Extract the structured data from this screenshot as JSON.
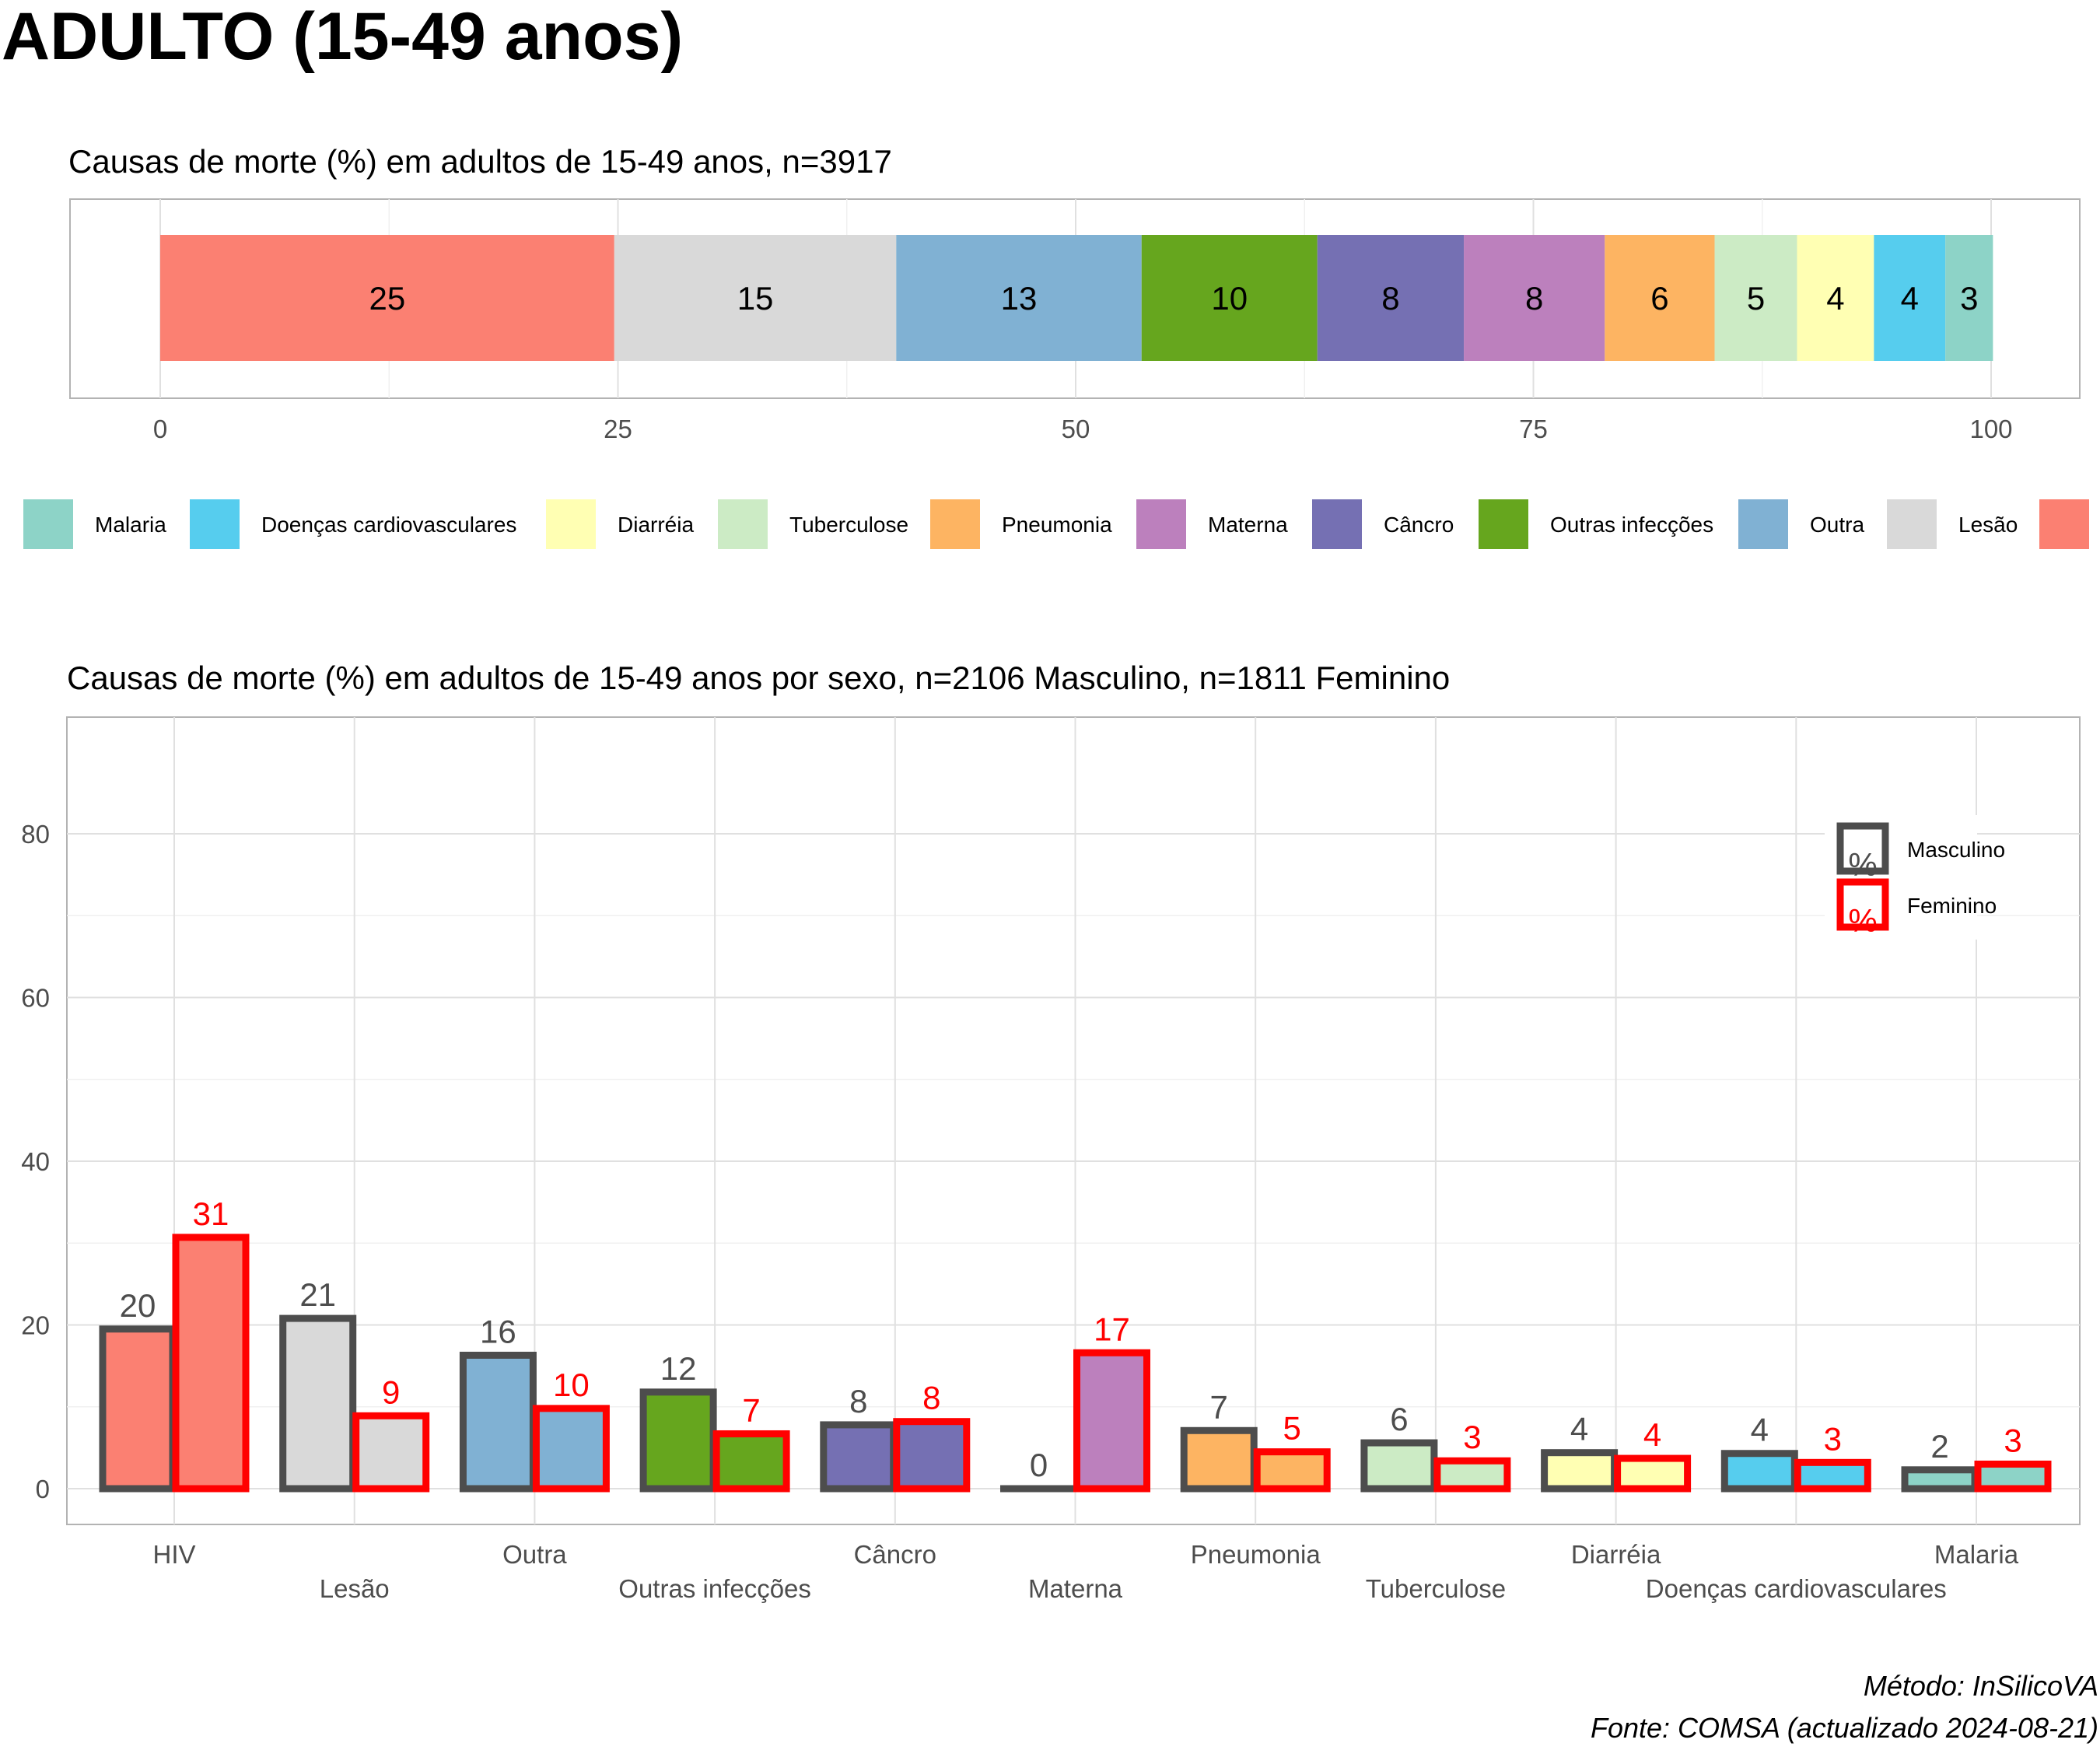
{
  "title": "ADULTO (15-49 anos)",
  "caption": {
    "method": "Método: InSilicoVA",
    "source": "Fonte: COMSA (actualizado 2024-08-21)"
  },
  "colors": {
    "HIV": "#fb8072",
    "Lesão": "#d9d9d9",
    "Outra": "#80b1d3",
    "Outras infecções": "#66a61e",
    "Câncro": "#7570b3",
    "Materna": "#bc80bd",
    "Pneumonia": "#fdb462",
    "Tuberculose": "#ccebc5",
    "Diarréia": "#ffffb3",
    "Doenças cardiovasculares": "#56cdee",
    "Malaria": "#8dd3c7",
    "male_outline": "#4d4d4d",
    "female_outline": "#ff0000"
  },
  "chart_data": [
    {
      "type": "bar",
      "orientation": "horizontal-stacked",
      "title": "Causas de morte (%) em adultos de 15-49 anos, n=3917",
      "xlim": [
        0,
        100
      ],
      "x_ticks": [
        0,
        25,
        50,
        75,
        100
      ],
      "categories": [
        "HIV",
        "Lesão",
        "Outra",
        "Outras infecções",
        "Câncro",
        "Materna",
        "Pneumonia",
        "Tuberculose",
        "Diarréia",
        "Doenças cardiovasculares",
        "Malaria"
      ],
      "values": [
        24.8,
        15.4,
        13.4,
        9.6,
        8.0,
        7.7,
        6.0,
        4.5,
        4.2,
        3.9,
        2.6
      ],
      "labels": [
        "25",
        "15",
        "13",
        "10",
        "8",
        "8",
        "6",
        "5",
        "4",
        "4",
        "3"
      ],
      "legend": {
        "position": "bottom",
        "entries": [
          "Malaria",
          "Doenças cardiovasculares",
          "Diarréia",
          "Tuberculose",
          "Pneumonia",
          "Materna",
          "Câncro",
          "Outras infecções",
          "Outra",
          "Lesão",
          "HIV"
        ]
      },
      "grid": true
    },
    {
      "type": "bar",
      "orientation": "vertical-grouped",
      "title": "Causas de morte (%) em adultos de 15-49 anos por sexo, n=2106 Masculino, n=1811 Feminino",
      "ylim": [
        -4,
        93
      ],
      "y_ticks": [
        0,
        20,
        40,
        60,
        80
      ],
      "categories": [
        "HIV",
        "Lesão",
        "Outra",
        "Outras infecções",
        "Câncro",
        "Materna",
        "Pneumonia",
        "Tuberculose",
        "Diarréia",
        "Doenças cardiovasculares",
        "Malaria"
      ],
      "series": [
        {
          "name": "Masculino",
          "values": [
            19.5,
            20.8,
            16.3,
            11.8,
            7.8,
            0,
            7.1,
            5.6,
            4.4,
            4.3,
            2.3
          ],
          "labels": [
            "20",
            "21",
            "16",
            "12",
            "8",
            "0",
            "7",
            "6",
            "4",
            "4",
            "2"
          ]
        },
        {
          "name": "Feminino",
          "values": [
            30.7,
            8.9,
            9.8,
            6.7,
            8.2,
            16.6,
            4.5,
            3.4,
            3.7,
            3.2,
            3.0
          ],
          "labels": [
            "31",
            "9",
            "10",
            "7",
            "8",
            "17",
            "5",
            "3",
            "4",
            "3",
            "3"
          ]
        }
      ],
      "legend": {
        "position": "top-right",
        "entries": [
          "Masculino",
          "Feminino"
        ],
        "key_glyph": "%"
      },
      "grid": true
    }
  ]
}
